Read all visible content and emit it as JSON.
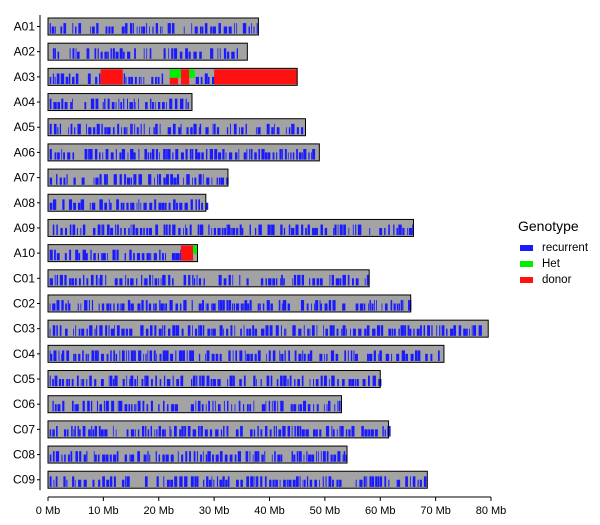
{
  "chart_data": {
    "type": "chromosome-genotype-map",
    "xlim": [
      0,
      80
    ],
    "x_ticks": [
      0,
      10,
      20,
      30,
      40,
      50,
      60,
      70,
      80
    ],
    "x_tick_labels": [
      "0 Mb",
      "10 Mb",
      "20 Mb",
      "30 Mb",
      "40 Mb",
      "50 Mb",
      "60 Mb",
      "70 Mb",
      "80 Mb"
    ],
    "chromosomes": [
      {
        "name": "A01",
        "length": 38.0,
        "donor_regions": [],
        "het_regions": []
      },
      {
        "name": "A02",
        "length": 36.0,
        "donor_regions": [],
        "het_regions": []
      },
      {
        "name": "A03",
        "length": 45.0,
        "donor_regions": [
          [
            9.5,
            13.5
          ],
          [
            22.0,
            23.5
          ],
          [
            24.0,
            25.5
          ],
          [
            30.0,
            45.0
          ]
        ],
        "het_regions": [
          [
            22.0,
            24.0
          ],
          [
            25.5,
            26.5
          ]
        ]
      },
      {
        "name": "A04",
        "length": 26.0,
        "donor_regions": [],
        "het_regions": []
      },
      {
        "name": "A05",
        "length": 46.5,
        "donor_regions": [],
        "het_regions": []
      },
      {
        "name": "A06",
        "length": 49.0,
        "donor_regions": [],
        "het_regions": []
      },
      {
        "name": "A07",
        "length": 32.5,
        "donor_regions": [],
        "het_regions": []
      },
      {
        "name": "A08",
        "length": 28.5,
        "donor_regions": [],
        "het_regions": []
      },
      {
        "name": "A09",
        "length": 66.0,
        "donor_regions": [],
        "het_regions": []
      },
      {
        "name": "A10",
        "length": 27.0,
        "donor_regions": [
          [
            24.0,
            26.2
          ]
        ],
        "het_regions": [
          [
            26.2,
            27.0
          ]
        ]
      },
      {
        "name": "C01",
        "length": 58.0,
        "donor_regions": [],
        "het_regions": []
      },
      {
        "name": "C02",
        "length": 65.5,
        "donor_regions": [],
        "het_regions": []
      },
      {
        "name": "C03",
        "length": 79.5,
        "donor_regions": [],
        "het_regions": []
      },
      {
        "name": "C04",
        "length": 71.5,
        "donor_regions": [],
        "het_regions": []
      },
      {
        "name": "C05",
        "length": 60.0,
        "donor_regions": [],
        "het_regions": []
      },
      {
        "name": "C06",
        "length": 53.0,
        "donor_regions": [],
        "het_regions": []
      },
      {
        "name": "C07",
        "length": 61.5,
        "donor_regions": [],
        "het_regions": []
      },
      {
        "name": "C08",
        "length": 54.0,
        "donor_regions": [],
        "het_regions": []
      },
      {
        "name": "C09",
        "length": 68.5,
        "donor_regions": [],
        "het_regions": []
      }
    ],
    "legend": {
      "title": "Genotype",
      "position": "right",
      "items": [
        {
          "label": "recurrent",
          "color": "#1a1aff"
        },
        {
          "label": "Het",
          "color": "#00ee00"
        },
        {
          "label": "donor",
          "color": "#ff1111"
        }
      ]
    },
    "background_color": "#a3a3a3",
    "grid": false
  }
}
